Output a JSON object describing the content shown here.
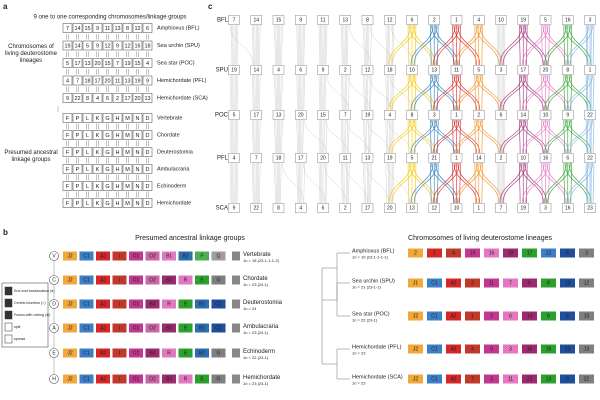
{
  "panel_a": {
    "label": "a",
    "title": "9 one to one corresponding chromosomes/linkage groups",
    "group_living": "Chromosomes of living deuterostome lineages",
    "group_ancestral": "Presumed ancestral linkage groups",
    "living": [
      {
        "name": "Amphioxus (BFL)",
        "chromosomes": [
          "7",
          "14",
          "15",
          "9",
          "11",
          "13",
          "8",
          "12",
          "6"
        ]
      },
      {
        "name": "Sea urchin (SPU)",
        "chromosomes": [
          "19",
          "14",
          "5",
          "9",
          "12",
          "9",
          "12",
          "16",
          "18"
        ]
      },
      {
        "name": "Sea star (POC)",
        "chromosomes": [
          "5",
          "17",
          "13",
          "20",
          "15",
          "7",
          "19",
          "15",
          "4"
        ]
      },
      {
        "name": "Hemichordate (PFL)",
        "chromosomes": [
          "4",
          "7",
          "18",
          "17",
          "20",
          "11",
          "13",
          "19",
          "9"
        ]
      },
      {
        "name": "Hemichordate (SCA)",
        "chromosomes": [
          "9",
          "22",
          "8",
          "4",
          "6",
          "2",
          "17",
          "20",
          "13"
        ]
      }
    ],
    "ancestral": [
      {
        "name": "Vertebrate",
        "groups": [
          "F",
          "P",
          "L",
          "K",
          "G",
          "H",
          "M",
          "N",
          "D"
        ]
      },
      {
        "name": "Chordate",
        "groups": [
          "F",
          "P",
          "L",
          "K",
          "G",
          "H",
          "M",
          "N",
          "D"
        ]
      },
      {
        "name": "Deuterostomia",
        "groups": [
          "F",
          "P",
          "L",
          "K",
          "G",
          "H",
          "M",
          "N",
          "D"
        ]
      },
      {
        "name": "Ambulacraria",
        "groups": [
          "F",
          "P",
          "L",
          "K",
          "G",
          "H",
          "M",
          "N",
          "D"
        ]
      },
      {
        "name": "Echinoderm",
        "groups": [
          "F",
          "P",
          "L",
          "K",
          "G",
          "H",
          "M",
          "N",
          "D"
        ]
      },
      {
        "name": "Hemichordate",
        "groups": [
          "F",
          "P",
          "L",
          "K",
          "G",
          "H",
          "M",
          "N",
          "D"
        ]
      }
    ]
  },
  "panel_c": {
    "label": "c",
    "rows": [
      {
        "name": "BFL",
        "chromosomes": [
          "7",
          "14",
          "15",
          "9",
          "11",
          "13",
          "8",
          "12",
          "6",
          "2",
          "1",
          "4",
          "10",
          "19",
          "5",
          "16",
          "3"
        ]
      },
      {
        "name": "SPU",
        "chromosomes": [
          "19",
          "14",
          "4",
          "6",
          "9",
          "2",
          "12",
          "18",
          "10",
          "13",
          "11",
          "5",
          "3",
          "17",
          "20",
          "8",
          "1"
        ]
      },
      {
        "name": "POC",
        "chromosomes": [
          "5",
          "17",
          "13",
          "20",
          "15",
          "7",
          "19",
          "4",
          "8",
          "3",
          "1",
          "2",
          "6",
          "14",
          "10",
          "9",
          "22"
        ]
      },
      {
        "name": "PFL",
        "chromosomes": [
          "4",
          "7",
          "18",
          "17",
          "20",
          "11",
          "13",
          "19",
          "5",
          "21",
          "1",
          "14",
          "2",
          "10",
          "16",
          "6",
          "22"
        ]
      },
      {
        "name": "SCA",
        "chromosomes": [
          "9",
          "22",
          "8",
          "4",
          "6",
          "2",
          "17",
          "20",
          "13",
          "12",
          "10",
          "1",
          "7",
          "19",
          "3",
          "16",
          "23"
        ]
      }
    ],
    "colors": [
      "#bdbdbd",
      "#bdbdbd",
      "#bdbdbd",
      "#bdbdbd",
      "#bdbdbd",
      "#bdbdbd",
      "#bdbdbd",
      "#bdbdbd",
      "#f2c500",
      "#2b7bba",
      "#d62728",
      "#f28e1c",
      "#bdbdbd",
      "#9c2a6e",
      "#e377c2",
      "#2ca02c",
      "#7fb3e0"
    ]
  },
  "panel_b": {
    "label": "b",
    "left_title": "Presumed ancestral linkage groups",
    "right_title": "Chromosomes of living deuterostome lineages",
    "legend": [
      "End-end translocation (●)",
      "Centric insertion (○)",
      "Fusion-with-mixing (⊗)",
      "split",
      "spread"
    ],
    "palette": {
      "J1": "#f2a93b",
      "J2": "#f2a93b",
      "C1": "#3d7fc4",
      "A2": "#d62728",
      "I": "#c0392b",
      "O1": "#c2378f",
      "O2": "#c866a8",
      "B1": "#e377c2",
      "B2": "#2c6fb0",
      "B3": "#9c2a6e",
      "R": "#e377c2",
      "E": "#2ca02c",
      "F": "#4caf50",
      "C2": "#1f4e9a",
      "G": "#7f7f7f",
      "Q": "#9e9e9e"
    },
    "ancestral": [
      {
        "node": "V",
        "name": "Vertebrate",
        "count": "1n = 18 (23-1-1-1-2)",
        "boxes": [
          "J2",
          "C1",
          "A2",
          "I",
          "O1",
          "O2",
          "B1",
          "B2",
          "F",
          "Q"
        ]
      },
      {
        "node": "C",
        "name": "Chordate",
        "count": "1n = 23 (24-1)",
        "boxes": [
          "J2",
          "C1",
          "A2",
          "I",
          "O1",
          "O2",
          "B3",
          "R",
          "E",
          "G"
        ]
      },
      {
        "node": "D",
        "name": "Deuterostomia",
        "count": "1n = 24",
        "boxes": [
          "J2",
          "C1",
          "A2",
          "I",
          "O1",
          "B3",
          "R",
          "E",
          "B2",
          "C2"
        ]
      },
      {
        "node": "A",
        "name": "Ambulacraria",
        "count": "1n = 23 (24-1)",
        "boxes": [
          "J2",
          "C1",
          "A2",
          "I",
          "O1",
          "O2",
          "B3",
          "E",
          "B2",
          "C2"
        ]
      },
      {
        "node": "E",
        "name": "Echinoderm",
        "count": "1n = 22 (23-1)",
        "boxes": [
          "J2",
          "C1",
          "A2",
          "I",
          "O1",
          "B3",
          "R",
          "E",
          "B2",
          "G"
        ]
      },
      {
        "node": "H",
        "name": "Hemichordate",
        "count": "1n = 23 (24-1)",
        "boxes": [
          "J2",
          "C1",
          "A2",
          "I",
          "O1",
          "O2",
          "B3",
          "R",
          "E",
          "G"
        ]
      }
    ],
    "living": [
      {
        "name": "Amphioxus (BFL)",
        "count": "1n = 19 (23-1-1-1-1)",
        "boxes": [
          "2",
          "1",
          "4",
          "19",
          "16",
          "18",
          "17",
          "12",
          "6",
          "3"
        ],
        "colors": [
          "#f2a93b",
          "#d62728",
          "#c0392b",
          "#c2378f",
          "#e377c2",
          "#9c2a6e",
          "#2ca02c",
          "#3d7fc4",
          "#1f4e9a",
          "#7f7f7f"
        ]
      },
      {
        "name": "Sea urchin (SPU)",
        "count": "1n = 21 (23-1-1)",
        "boxes": [
          "J1",
          "C1",
          "A2",
          "3",
          "11",
          "7",
          "6",
          "8",
          "19",
          "12"
        ],
        "colors": [
          "#f2a93b",
          "#3d7fc4",
          "#d62728",
          "#c0392b",
          "#c2378f",
          "#e377c2",
          "#9c2a6e",
          "#2ca02c",
          "#1f4e9a",
          "#7f7f7f"
        ]
      },
      {
        "name": "Sea star (POC)",
        "count": "1n = 22 (23-1)",
        "boxes": [
          "J2",
          "C1",
          "A2",
          "1",
          "2",
          "6",
          "14",
          "8",
          "5",
          "10"
        ],
        "colors": [
          "#f2a93b",
          "#3d7fc4",
          "#d62728",
          "#c0392b",
          "#c2378f",
          "#e377c2",
          "#9c2a6e",
          "#2ca02c",
          "#1f4e9a",
          "#7f7f7f"
        ]
      },
      {
        "name": "Hemichordate (PFL)",
        "count": "1n = 23",
        "boxes": [
          "J2",
          "C1",
          "A2",
          "4",
          "9",
          "3",
          "16",
          "18",
          "23",
          "13"
        ],
        "colors": [
          "#f2a93b",
          "#3d7fc4",
          "#d62728",
          "#c0392b",
          "#c2378f",
          "#e377c2",
          "#9c2a6e",
          "#2ca02c",
          "#1f4e9a",
          "#7f7f7f"
        ]
      },
      {
        "name": "Hemichordate (SCA)",
        "count": "1n = 23",
        "boxes": [
          "J2",
          "C1",
          "A2",
          "7",
          "3",
          "11",
          "23",
          "13",
          "9",
          "22"
        ],
        "colors": [
          "#f2a93b",
          "#3d7fc4",
          "#d62728",
          "#c0392b",
          "#c2378f",
          "#e377c2",
          "#9c2a6e",
          "#2ca02c",
          "#1f4e9a",
          "#7f7f7f"
        ]
      }
    ]
  }
}
